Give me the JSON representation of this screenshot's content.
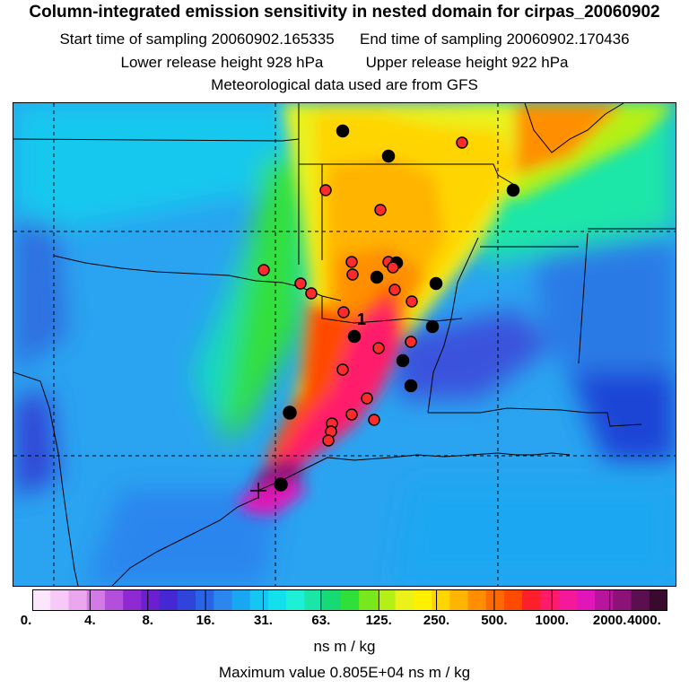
{
  "title": "Column-integrated emission sensitivity in nested domain for cirpas_20060902",
  "sampling": {
    "start": "Start time of sampling 20060902.165335",
    "end": "End time of sampling 20060902.170436"
  },
  "release": {
    "lower": "Lower release height  928 hPa",
    "upper": "Upper release height  922 hPa"
  },
  "met_note": "Meteorological data used are from GFS",
  "map": {
    "release_label": "1"
  },
  "colorbar": {
    "tick_labels": [
      "0.",
      "4.",
      "8.",
      "16.",
      "31.",
      "63.",
      "125.",
      "250.",
      "500.",
      "1000.",
      "2000.",
      "4000."
    ],
    "colors": [
      "#fbe6fb",
      "#f6c9f6",
      "#eba6f0",
      "#d27ae6",
      "#b34fdc",
      "#8f2ad2",
      "#6b1fcf",
      "#4527d3",
      "#2f44da",
      "#2a64e6",
      "#2b86ee",
      "#1aa7f2",
      "#14c6f0",
      "#12e0ec",
      "#1ef0d8",
      "#1ae6a8",
      "#16da74",
      "#30e03a",
      "#76e81c",
      "#b4f016",
      "#eaf21a",
      "#fff000",
      "#ffd500",
      "#ffb400",
      "#ff8f00",
      "#ff6a00",
      "#ff4a00",
      "#ff1f2a",
      "#ff1a6a",
      "#f5189a",
      "#e016b8",
      "#b8149c",
      "#8c1278",
      "#5c0f50",
      "#3a0a2e"
    ],
    "units": "ns m / kg"
  },
  "max_value": "Maximum value  0.805E+04 ns m / kg"
}
